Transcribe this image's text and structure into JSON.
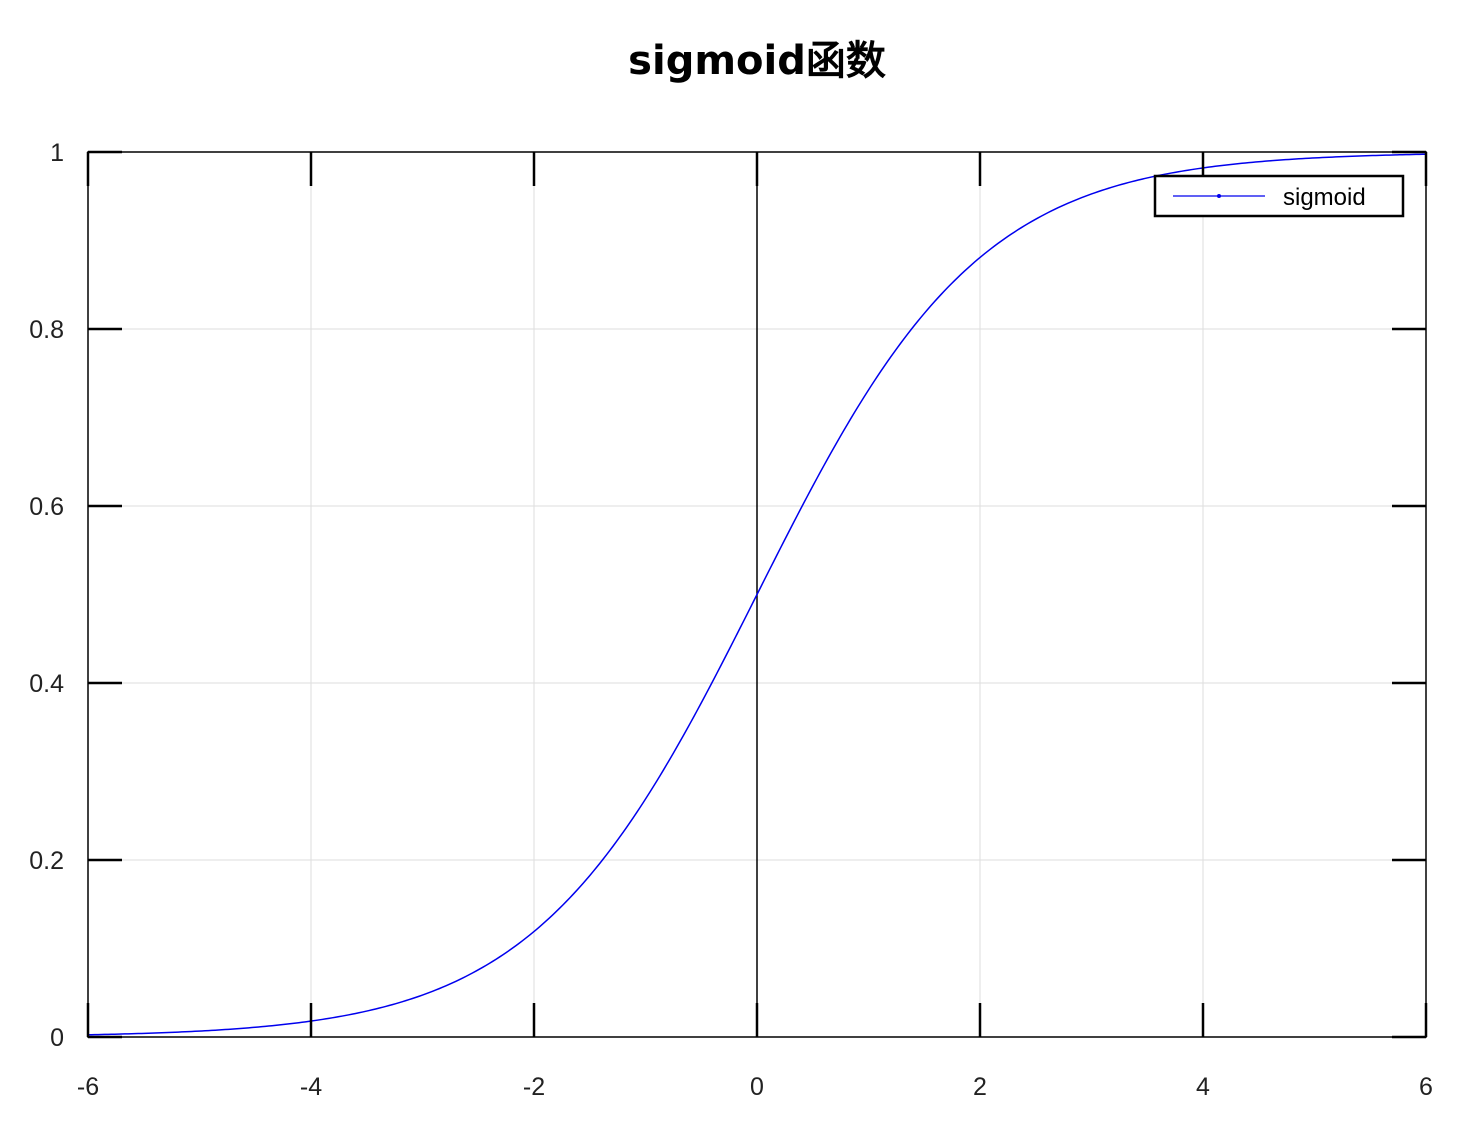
{
  "chart_data": {
    "type": "line",
    "title": "sigmoid函数",
    "xlabel": "",
    "ylabel": "",
    "xlim": [
      -6,
      6
    ],
    "ylim": [
      0,
      1
    ],
    "x_ticks": [
      -6,
      -4,
      -2,
      0,
      2,
      4,
      6
    ],
    "x_tick_labels": [
      "-6",
      "-4",
      "-2",
      "0",
      "2",
      "4",
      "6"
    ],
    "y_ticks": [
      0,
      0.2,
      0.4,
      0.6,
      0.8,
      1
    ],
    "y_tick_labels": [
      "0",
      "0.2",
      "0.4",
      "0.6",
      "0.8",
      "1"
    ],
    "grid": true,
    "legend": {
      "position": "top-right"
    },
    "series": [
      {
        "name": "sigmoid",
        "color": "#0000ee",
        "x": [
          -6,
          -5.5,
          -5,
          -4.5,
          -4,
          -3.5,
          -3,
          -2.5,
          -2,
          -1.5,
          -1,
          -0.5,
          0,
          0.5,
          1,
          1.5,
          2,
          2.5,
          3,
          3.5,
          4,
          4.5,
          5,
          5.5,
          6
        ],
        "y": [
          0.0025,
          0.0041,
          0.0067,
          0.011,
          0.018,
          0.0293,
          0.0474,
          0.0759,
          0.1192,
          0.1824,
          0.2689,
          0.3775,
          0.5,
          0.6225,
          0.7311,
          0.8176,
          0.8808,
          0.9241,
          0.9526,
          0.9707,
          0.982,
          0.989,
          0.9933,
          0.9959,
          0.9975
        ]
      }
    ]
  }
}
